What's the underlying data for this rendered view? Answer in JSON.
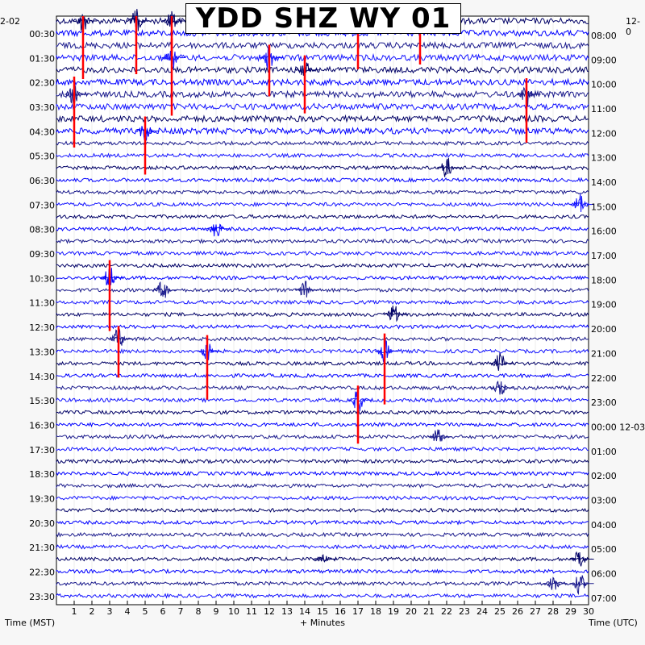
{
  "header": {
    "title": "YDD SHZ WY 01",
    "left_date": "2-02",
    "right_date": "12-0"
  },
  "footer": {
    "left_label": "Time (MST)",
    "center_label": "+ Minutes",
    "right_label": "Time (UTC)"
  },
  "chart_data": {
    "type": "line",
    "title": "YDD SHZ WY 01",
    "xlabel": "+ Minutes",
    "ylabel_left": "Time (MST)",
    "ylabel_right": "Time (UTC)",
    "xlim": [
      0,
      30
    ],
    "x_ticks": [
      "1",
      "2",
      "3",
      "4",
      "5",
      "6",
      "7",
      "8",
      "9",
      "10",
      "11",
      "12",
      "13",
      "14",
      "15",
      "16",
      "17",
      "18",
      "19",
      "20",
      "21",
      "22",
      "23",
      "24",
      "25",
      "26",
      "27",
      "28",
      "29",
      "30"
    ],
    "row_count": 48,
    "row_colors": [
      "#000066",
      "#0000ff",
      "#1a1a8c",
      "#1414ff"
    ],
    "clip_color": "#ff0000",
    "left_time_labels": [
      "00:30",
      "01:30",
      "02:30",
      "03:30",
      "04:30",
      "05:30",
      "06:30",
      "07:30",
      "08:30",
      "09:30",
      "10:30",
      "11:30",
      "12:30",
      "13:30",
      "14:30",
      "15:30",
      "16:30",
      "17:30",
      "18:30",
      "19:30",
      "20:30",
      "21:30",
      "22:30",
      "23:30"
    ],
    "right_time_labels": [
      "08:00",
      "09:00",
      "10:00",
      "11:00",
      "12:00",
      "13:00",
      "14:00",
      "15:00",
      "16:00",
      "17:00",
      "18:00",
      "19:00",
      "20:00",
      "21:00",
      "22:00",
      "23:00",
      "00:00 12-03",
      "01:00",
      "02:00",
      "03:00",
      "04:00",
      "05:00",
      "06:00",
      "07:00"
    ],
    "events": [
      {
        "row": 0,
        "minute": 1.5,
        "amp": 60
      },
      {
        "row": 0,
        "minute": 4.5,
        "amp": 55
      },
      {
        "row": 0,
        "minute": 6.5,
        "amp": 40
      },
      {
        "row": 0,
        "minute": 17.0,
        "amp": 50
      },
      {
        "row": 0,
        "minute": 20.5,
        "amp": 45
      },
      {
        "row": 3,
        "minute": 6.5,
        "amp": 60
      },
      {
        "row": 3,
        "minute": 12.0,
        "amp": 40
      },
      {
        "row": 4,
        "minute": 14.0,
        "amp": 45
      },
      {
        "row": 6,
        "minute": 1.0,
        "amp": 55
      },
      {
        "row": 6,
        "minute": 26.5,
        "amp": 50
      },
      {
        "row": 9,
        "minute": 5.0,
        "amp": 45
      },
      {
        "row": 12,
        "minute": 22.0,
        "amp": 15
      },
      {
        "row": 15,
        "minute": 29.5,
        "amp": 15
      },
      {
        "row": 17,
        "minute": 9.0,
        "amp": 12
      },
      {
        "row": 21,
        "minute": 3.0,
        "amp": 55
      },
      {
        "row": 22,
        "minute": 6.0,
        "amp": 14
      },
      {
        "row": 22,
        "minute": 14.0,
        "amp": 12
      },
      {
        "row": 24,
        "minute": 19.0,
        "amp": 14
      },
      {
        "row": 26,
        "minute": 3.5,
        "amp": 40
      },
      {
        "row": 27,
        "minute": 8.5,
        "amp": 50
      },
      {
        "row": 27,
        "minute": 18.5,
        "amp": 55
      },
      {
        "row": 28,
        "minute": 25.0,
        "amp": 15
      },
      {
        "row": 30,
        "minute": 25.0,
        "amp": 13
      },
      {
        "row": 31,
        "minute": 17.0,
        "amp": 45
      },
      {
        "row": 34,
        "minute": 21.5,
        "amp": 12
      },
      {
        "row": 44,
        "minute": 15.0,
        "amp": 8
      },
      {
        "row": 44,
        "minute": 29.5,
        "amp": 14
      },
      {
        "row": 46,
        "minute": 28.0,
        "amp": 12
      },
      {
        "row": 46,
        "minute": 29.5,
        "amp": 14
      }
    ]
  }
}
